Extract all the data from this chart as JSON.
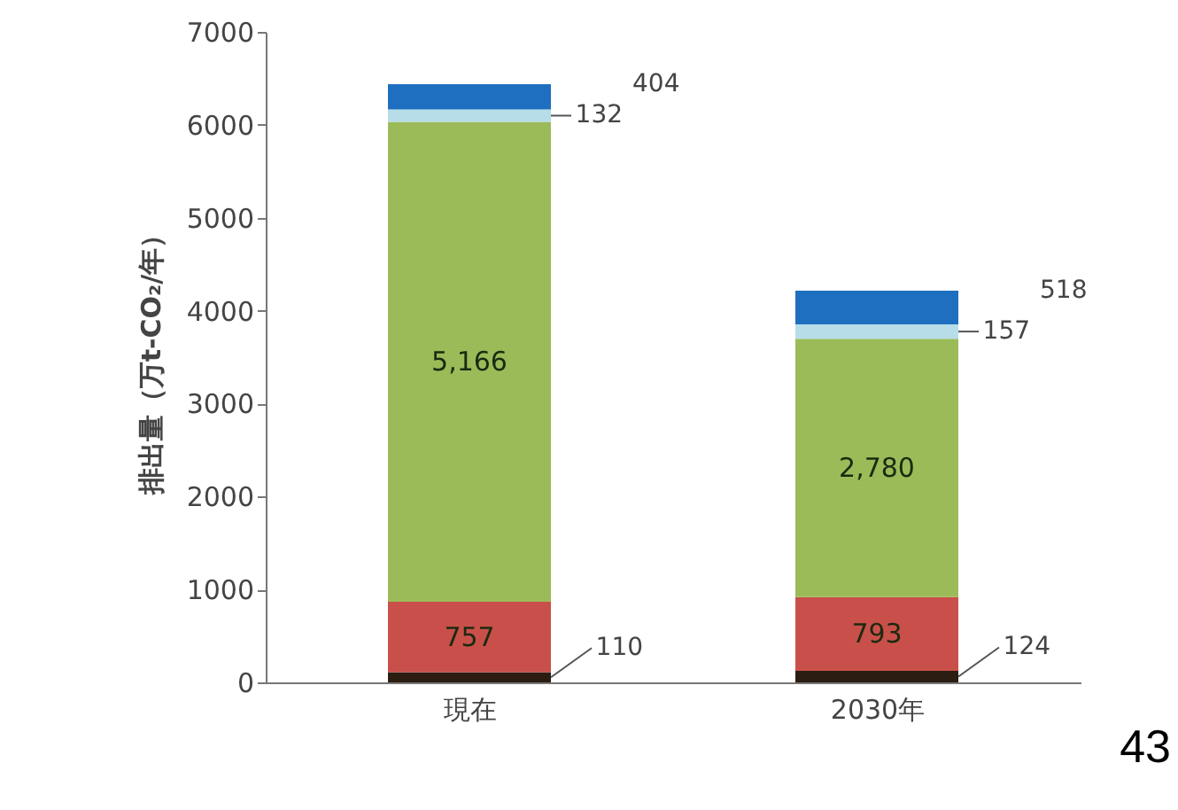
{
  "chart_data": {
    "type": "bar",
    "stacked": true,
    "ylabel": "排出量（万t-CO₂/年）",
    "categories": [
      "現在",
      "2030年"
    ],
    "series": [
      {
        "color": "#2b1d12",
        "values": [
          110,
          124
        ],
        "value_labels": [
          "110",
          "124"
        ]
      },
      {
        "color": "#c9504a",
        "values": [
          757,
          793
        ],
        "value_labels": [
          "757",
          "793"
        ]
      },
      {
        "color": "#9bbb59",
        "values": [
          5166,
          2780
        ],
        "value_labels": [
          "5,166",
          "2,780"
        ]
      },
      {
        "color": "#b7dde8",
        "values": [
          132,
          157
        ],
        "value_labels": [
          "132",
          "157"
        ]
      },
      {
        "color": "#1f6fc0",
        "values": [
          272,
          361
        ]
      }
    ],
    "annotations": [
      "404",
      "518",
      "43"
    ],
    "ylim": [
      0,
      7000
    ],
    "yticks": [
      0,
      1000,
      2000,
      3000,
      4000,
      5000,
      6000,
      7000
    ],
    "grid": false
  }
}
